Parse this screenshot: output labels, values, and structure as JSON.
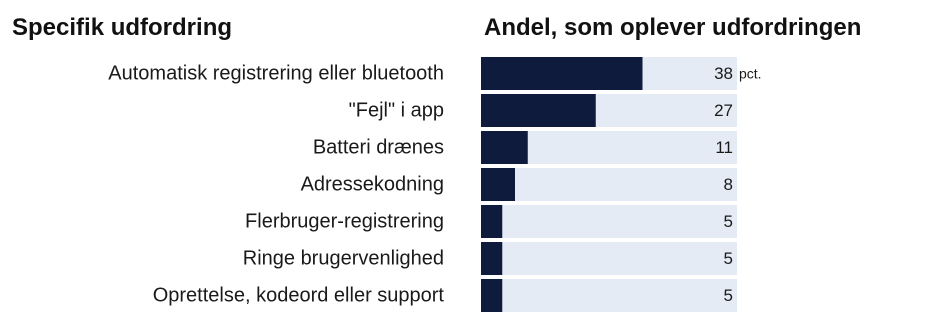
{
  "chart_data": {
    "type": "bar",
    "orientation": "horizontal",
    "category_header": "Specifik udfordring",
    "value_header": "Andel, som oplever udfordringen",
    "unit": "pct.",
    "categories": [
      "Automatisk registrering eller bluetooth",
      "\"Fejl\" i app",
      "Batteri drænes",
      "Adressekodning",
      "Flerbruger-registrering",
      "Ringe brugervenlighed",
      "Oprettelse, kodeord eller support"
    ],
    "values": [
      38,
      27,
      11,
      8,
      5,
      5,
      5
    ],
    "labels": [
      "38",
      "27",
      "11",
      "8",
      "5",
      "5",
      "5"
    ],
    "xlim": [
      0,
      100
    ],
    "colors": {
      "bar": "#0f1b3d",
      "track": "#e4ebf4",
      "text": "#1a1a1a"
    }
  }
}
